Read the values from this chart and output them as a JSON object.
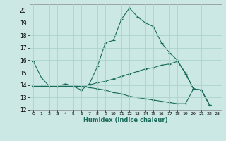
{
  "xlabel": "Humidex (Indice chaleur)",
  "background_color": "#cce8e4",
  "grid_color": "#aad4cc",
  "line_color": "#1a6b5a",
  "xlim": [
    -0.5,
    23.5
  ],
  "ylim": [
    12,
    20.5
  ],
  "yticks": [
    12,
    13,
    14,
    15,
    16,
    17,
    18,
    19,
    20
  ],
  "xtick_labels": [
    "0",
    "1",
    "2",
    "3",
    "4",
    "5",
    "6",
    "7",
    "8",
    "9",
    "10",
    "11",
    "12",
    "13",
    "14",
    "15",
    "16",
    "17",
    "18",
    "19",
    "20",
    "21",
    "22",
    "23"
  ],
  "series": [
    {
      "x": [
        0,
        1,
        2,
        3,
        4,
        5,
        6,
        7,
        8,
        9,
        10,
        11,
        12,
        13,
        14,
        15,
        16,
        17,
        18,
        19,
        20,
        21,
        22
      ],
      "y": [
        15.9,
        14.6,
        13.9,
        13.9,
        14.1,
        13.9,
        13.6,
        14.1,
        15.5,
        17.4,
        17.6,
        19.3,
        20.2,
        19.5,
        19.0,
        18.7,
        17.4,
        16.6,
        16.0,
        14.9,
        13.7,
        13.6,
        12.4
      ]
    },
    {
      "x": [
        0,
        1,
        2,
        3,
        4,
        5,
        6,
        7,
        8,
        9,
        10,
        11,
        12,
        13,
        14,
        15,
        16,
        17,
        18,
        19,
        20,
        21,
        22
      ],
      "y": [
        14.0,
        14.0,
        13.9,
        13.9,
        14.0,
        14.0,
        13.9,
        14.0,
        14.2,
        14.3,
        14.5,
        14.7,
        14.9,
        15.1,
        15.3,
        15.4,
        15.6,
        15.7,
        15.9,
        15.0,
        13.7,
        13.6,
        12.4
      ]
    },
    {
      "x": [
        0,
        1,
        2,
        3,
        4,
        5,
        6,
        7,
        8,
        9,
        10,
        11,
        12,
        13,
        14,
        15,
        16,
        17,
        18,
        19,
        20,
        21,
        22
      ],
      "y": [
        13.9,
        13.9,
        13.9,
        13.9,
        13.9,
        13.9,
        13.9,
        13.8,
        13.7,
        13.6,
        13.4,
        13.3,
        13.1,
        13.0,
        12.9,
        12.8,
        12.7,
        12.6,
        12.5,
        12.5,
        13.7,
        13.6,
        12.4
      ]
    }
  ]
}
